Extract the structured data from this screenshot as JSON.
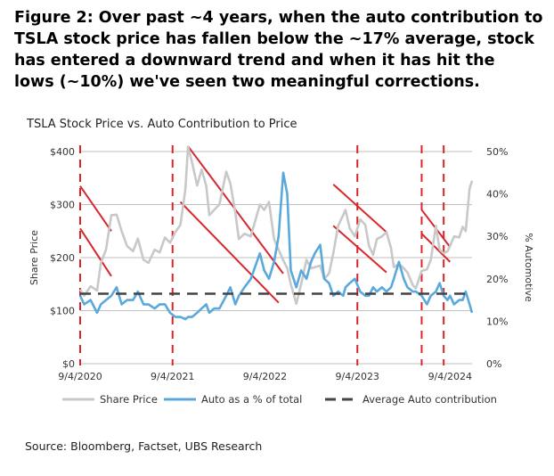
{
  "figure_title": [
    "Figure 2: Over past ~4 years, when the auto contribution to",
    "TSLA stock price has fallen below the ~17% average, stock",
    "has entered a downward trend and when it has hit the",
    "lows (~10%) we've seen two meaningful corrections."
  ],
  "source": "Source: Bloomberg, Factset, UBS Research",
  "colors": {
    "share_price": "#c8c8c8",
    "auto_pct": "#5aa9dc",
    "average": "#444444",
    "trend_lines": "#d9262b",
    "gridline": "#bfbfbf"
  },
  "chart_data": {
    "type": "line",
    "title": "TSLA Stock Price vs. Auto Contribution to Price",
    "xlabel": "",
    "ylabel": "Share Price",
    "y2label": "% Automotive",
    "x_ticks": [
      "9/4/2020",
      "9/4/2021",
      "9/4/2022",
      "9/4/2023",
      "9/4/2024"
    ],
    "y_ticks": [
      "$0",
      "$100",
      "$200",
      "$300",
      "$400"
    ],
    "y2_ticks": [
      "0%",
      "10%",
      "20%",
      "30%",
      "40%",
      "50%"
    ],
    "ylim": [
      0,
      400
    ],
    "y2lim": [
      0,
      50
    ],
    "xlim": [
      "2020-09-04",
      "2024-11-30"
    ],
    "grid": true,
    "legend": "bottom",
    "series": [
      {
        "name": "Share Price",
        "axis": "left",
        "x": [
          "2020-09-04",
          "2020-09-20",
          "2020-10-15",
          "2020-11-10",
          "2020-11-25",
          "2020-12-15",
          "2021-01-05",
          "2021-01-26",
          "2021-02-15",
          "2021-03-08",
          "2021-04-01",
          "2021-04-20",
          "2021-05-12",
          "2021-06-01",
          "2021-06-25",
          "2021-07-15",
          "2021-08-05",
          "2021-08-25",
          "2021-09-15",
          "2021-10-05",
          "2021-10-25",
          "2021-11-04",
          "2021-11-20",
          "2021-12-10",
          "2021-12-28",
          "2022-01-15",
          "2022-01-27",
          "2022-02-15",
          "2022-03-08",
          "2022-04-04",
          "2022-04-20",
          "2022-05-10",
          "2022-05-24",
          "2022-06-15",
          "2022-07-10",
          "2022-08-15",
          "2022-09-01",
          "2022-09-20",
          "2022-10-10",
          "2022-10-28",
          "2022-11-15",
          "2022-12-01",
          "2022-12-15",
          "2023-01-06",
          "2023-01-25",
          "2023-02-15",
          "2023-03-05",
          "2023-03-20",
          "2023-04-10",
          "2023-04-26",
          "2023-05-15",
          "2023-06-01",
          "2023-06-20",
          "2023-07-10",
          "2023-07-19",
          "2023-08-05",
          "2023-08-25",
          "2023-09-15",
          "2023-10-05",
          "2023-10-20",
          "2023-11-05",
          "2023-11-20",
          "2023-12-10",
          "2023-12-28",
          "2024-01-15",
          "2024-01-26",
          "2024-02-15",
          "2024-03-05",
          "2024-03-20",
          "2024-04-10",
          "2024-04-22",
          "2024-05-15",
          "2024-06-05",
          "2024-06-20",
          "2024-07-10",
          "2024-07-25",
          "2024-08-10",
          "2024-08-25",
          "2024-09-04",
          "2024-09-20",
          "2024-10-10",
          "2024-10-24",
          "2024-11-05",
          "2024-11-20",
          "2024-11-30"
        ],
        "values": [
          140,
          128,
          146,
          138,
          190,
          215,
          280,
          281,
          250,
          222,
          212,
          236,
          196,
          190,
          215,
          210,
          238,
          228,
          248,
          262,
          330,
          409,
          380,
          336,
          366,
          335,
          280,
          290,
          300,
          362,
          340,
          285,
          235,
          245,
          240,
          300,
          290,
          305,
          235,
          215,
          195,
          180,
          150,
          113,
          150,
          196,
          180,
          182,
          185,
          160,
          170,
          208,
          260,
          280,
          290,
          255,
          240,
          272,
          262,
          222,
          205,
          235,
          240,
          248,
          218,
          182,
          188,
          180,
          172,
          148,
          142,
          175,
          178,
          196,
          260,
          215,
          208,
          212,
          222,
          240,
          238,
          258,
          250,
          330,
          345
        ]
      },
      {
        "name": "Auto as a % of total",
        "axis": "right",
        "x": [
          "2020-09-04",
          "2020-09-20",
          "2020-10-15",
          "2020-11-10",
          "2020-11-25",
          "2020-12-15",
          "2021-01-05",
          "2021-01-26",
          "2021-02-15",
          "2021-03-08",
          "2021-04-01",
          "2021-04-20",
          "2021-05-12",
          "2021-06-01",
          "2021-06-25",
          "2021-07-15",
          "2021-08-05",
          "2021-08-25",
          "2021-09-15",
          "2021-10-05",
          "2021-10-25",
          "2021-11-04",
          "2021-11-20",
          "2021-12-10",
          "2021-12-28",
          "2022-01-15",
          "2022-01-27",
          "2022-02-15",
          "2022-03-08",
          "2022-04-04",
          "2022-04-20",
          "2022-05-10",
          "2022-05-24",
          "2022-06-15",
          "2022-07-10",
          "2022-08-15",
          "2022-09-01",
          "2022-09-20",
          "2022-10-10",
          "2022-10-28",
          "2022-11-15",
          "2022-12-01",
          "2022-12-15",
          "2023-01-06",
          "2023-01-25",
          "2023-02-15",
          "2023-03-05",
          "2023-03-20",
          "2023-04-10",
          "2023-04-26",
          "2023-05-15",
          "2023-06-01",
          "2023-06-20",
          "2023-07-10",
          "2023-07-19",
          "2023-08-05",
          "2023-08-25",
          "2023-09-15",
          "2023-10-05",
          "2023-10-20",
          "2023-11-05",
          "2023-11-20",
          "2023-12-10",
          "2023-12-28",
          "2024-01-15",
          "2024-01-26",
          "2024-02-15",
          "2024-03-05",
          "2024-03-20",
          "2024-04-10",
          "2024-04-22",
          "2024-05-15",
          "2024-06-05",
          "2024-06-20",
          "2024-07-10",
          "2024-07-25",
          "2024-08-10",
          "2024-08-25",
          "2024-09-04",
          "2024-09-20",
          "2024-10-10",
          "2024-10-24",
          "2024-11-05",
          "2024-11-20",
          "2024-11-30"
        ],
        "values": [
          16,
          14,
          15,
          12,
          14,
          15,
          16,
          18,
          14,
          15,
          15,
          17,
          14,
          14,
          13,
          14,
          14,
          12,
          11,
          11,
          10.5,
          11,
          11,
          12,
          13,
          14,
          12,
          13,
          13,
          16,
          18,
          14,
          16,
          18,
          20,
          26,
          22,
          20,
          24,
          30,
          45,
          40,
          22,
          18,
          22,
          20,
          24,
          26,
          28,
          20,
          19,
          16,
          17,
          16,
          18,
          19,
          20,
          17,
          16,
          16,
          18,
          17,
          18,
          17,
          18,
          20,
          24,
          20,
          18,
          17,
          17,
          16,
          14,
          16,
          17,
          19,
          16,
          15,
          16,
          14,
          15,
          15,
          17,
          14,
          12
        ]
      },
      {
        "name": "Average Auto contribution",
        "axis": "right",
        "x": [
          "2020-09-04",
          "2024-11-30"
        ],
        "values": [
          16.5,
          16.5
        ]
      }
    ],
    "corrections_start": [
      "2020-09-04",
      "2021-09-04",
      "2023-09-04",
      "2024-05-15",
      "2024-08-10"
    ],
    "trend_lines": [
      {
        "x": [
          "2020-09-04",
          "2021-01-05"
        ],
        "values": [
          335,
          250
        ]
      },
      {
        "x": [
          "2020-09-04",
          "2021-01-05"
        ],
        "values": [
          255,
          165
        ]
      },
      {
        "x": [
          "2021-11-04",
          "2022-11-15"
        ],
        "values": [
          410,
          170
        ]
      },
      {
        "x": [
          "2021-10-05",
          "2022-10-28"
        ],
        "values": [
          305,
          115
        ]
      },
      {
        "x": [
          "2023-06-01",
          "2023-12-28"
        ],
        "values": [
          338,
          248
        ]
      },
      {
        "x": [
          "2023-06-01",
          "2023-12-28"
        ],
        "values": [
          260,
          172
        ]
      },
      {
        "x": [
          "2024-05-15",
          "2024-09-04"
        ],
        "values": [
          290,
          220
        ]
      },
      {
        "x": [
          "2024-05-15",
          "2024-09-04"
        ],
        "values": [
          245,
          192
        ]
      }
    ]
  }
}
